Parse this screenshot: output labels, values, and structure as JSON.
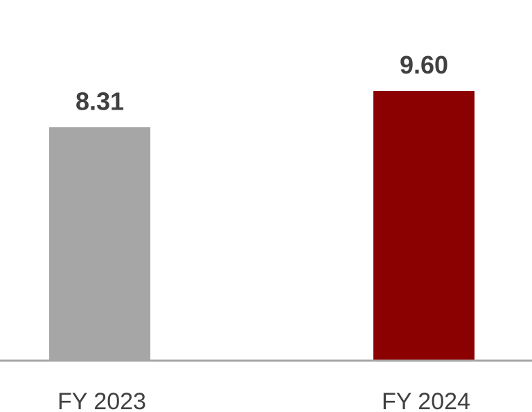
{
  "chart_data": {
    "type": "bar",
    "categories": [
      "FY 2023",
      "FY 2024"
    ],
    "values": [
      8.31,
      9.6
    ],
    "value_labels": [
      "8.31",
      "9.60"
    ],
    "bar_colors": [
      "#a6a6a6",
      "#8b0000"
    ],
    "baseline_color": "#a6a6a6",
    "text_color": "#404040",
    "ylim": [
      0,
      9.6
    ],
    "grid": false,
    "legend": "none"
  }
}
